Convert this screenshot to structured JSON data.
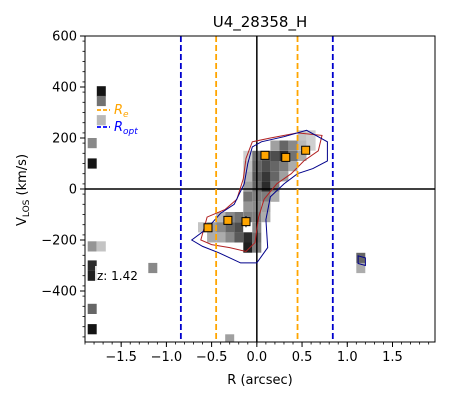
{
  "chart_data": {
    "type": "scatter",
    "title": "U4_28358_H",
    "xlabel": "R (arcsec)",
    "ylabel_main": "V",
    "ylabel_sub": "LOS",
    "ylabel_unit": " (km/s)",
    "xlim": [
      -1.9,
      1.97
    ],
    "ylim": [
      -600,
      600
    ],
    "xticks": [
      {
        "value": -1.5,
        "label": "−1.5"
      },
      {
        "value": -1.0,
        "label": "−1.0"
      },
      {
        "value": -0.5,
        "label": "−0.5"
      },
      {
        "value": 0.0,
        "label": "0.0"
      },
      {
        "value": 0.5,
        "label": "0.5"
      },
      {
        "value": 1.0,
        "label": "1.0"
      },
      {
        "value": 1.5,
        "label": "1.5"
      }
    ],
    "yticks": [
      {
        "value": -400,
        "label": "−400"
      },
      {
        "value": -200,
        "label": "−200"
      },
      {
        "value": 0,
        "label": "0"
      },
      {
        "value": 200,
        "label": "200"
      },
      {
        "value": 400,
        "label": "400"
      },
      {
        "value": 600,
        "label": "600"
      }
    ],
    "grid": false,
    "legend_placement": "upper-left",
    "legend": [
      {
        "label": "R",
        "sub": "e",
        "color": "#FFA500"
      },
      {
        "label": "R",
        "sub": "opt",
        "color": "#0000FF"
      }
    ],
    "annotation": "z: 1.42",
    "re_lines": [
      -0.45,
      0.45
    ],
    "ropt_lines": [
      -0.84,
      0.84
    ],
    "colors": {
      "re": "#FFA500",
      "ropt": "#0000CD",
      "contour_red": "#B22222",
      "contour_blue": "#00008B",
      "points": "#FFA500"
    },
    "points": [
      {
        "x": -0.54,
        "y": -152,
        "err": 15
      },
      {
        "x": -0.32,
        "y": -123,
        "err": 15
      },
      {
        "x": -0.12,
        "y": -128,
        "err": 22
      },
      {
        "x": 0.09,
        "y": 132,
        "err": 15
      },
      {
        "x": 0.32,
        "y": 124,
        "err": 15
      },
      {
        "x": 0.54,
        "y": 152,
        "err": 15
      }
    ],
    "pixels": [
      {
        "x": -1.72,
        "y": 383,
        "v": 0.95
      },
      {
        "x": -1.72,
        "y": 345,
        "v": 0.55
      },
      {
        "x": -1.72,
        "y": 270,
        "v": 0.25
      },
      {
        "x": -1.82,
        "y": 180,
        "v": 0.45
      },
      {
        "x": -1.82,
        "y": 100,
        "v": 0.95
      },
      {
        "x": -1.82,
        "y": -225,
        "v": 0.4
      },
      {
        "x": -1.72,
        "y": -225,
        "v": 0.2
      },
      {
        "x": -1.82,
        "y": -300,
        "v": 0.85
      },
      {
        "x": -1.82,
        "y": -340,
        "v": 0.9
      },
      {
        "x": -1.82,
        "y": -470,
        "v": 0.6
      },
      {
        "x": -1.82,
        "y": -550,
        "v": 0.95
      },
      {
        "x": -1.15,
        "y": -310,
        "v": 0.45
      },
      {
        "x": 1.15,
        "y": -270,
        "v": 0.6
      },
      {
        "x": 1.15,
        "y": -310,
        "v": 0.3
      },
      {
        "x": -0.3,
        "y": -590,
        "v": 0.35
      },
      {
        "x": -0.6,
        "y": -150,
        "v": 0.2
      },
      {
        "x": -0.5,
        "y": -150,
        "v": 0.35
      },
      {
        "x": -0.5,
        "y": -190,
        "v": 0.3
      },
      {
        "x": -0.4,
        "y": -110,
        "v": 0.25
      },
      {
        "x": -0.4,
        "y": -150,
        "v": 0.45
      },
      {
        "x": -0.4,
        "y": -190,
        "v": 0.3
      },
      {
        "x": -0.3,
        "y": -110,
        "v": 0.45
      },
      {
        "x": -0.3,
        "y": -150,
        "v": 0.6
      },
      {
        "x": -0.3,
        "y": -190,
        "v": 0.45
      },
      {
        "x": -0.2,
        "y": -110,
        "v": 0.55
      },
      {
        "x": -0.2,
        "y": -150,
        "v": 0.7
      },
      {
        "x": -0.2,
        "y": -190,
        "v": 0.65
      },
      {
        "x": -0.1,
        "y": -190,
        "v": 0.85
      },
      {
        "x": -0.1,
        "y": -230,
        "v": 0.9
      },
      {
        "x": -0.1,
        "y": -110,
        "v": 0.5
      },
      {
        "x": -0.1,
        "y": -70,
        "v": 0.4
      },
      {
        "x": -0.1,
        "y": -30,
        "v": 0.55
      },
      {
        "x": -0.1,
        "y": 10,
        "v": 0.35
      },
      {
        "x": -0.1,
        "y": 50,
        "v": 0.25
      },
      {
        "x": -0.1,
        "y": 90,
        "v": 0.2
      },
      {
        "x": -0.1,
        "y": 130,
        "v": 0.15
      },
      {
        "x": 0.0,
        "y": -230,
        "v": 0.5
      },
      {
        "x": 0.0,
        "y": -190,
        "v": 0.55
      },
      {
        "x": 0.0,
        "y": -150,
        "v": 0.45
      },
      {
        "x": 0.0,
        "y": -110,
        "v": 0.5
      },
      {
        "x": 0.0,
        "y": -70,
        "v": 0.45
      },
      {
        "x": 0.0,
        "y": -30,
        "v": 0.5
      },
      {
        "x": 0.0,
        "y": 10,
        "v": 0.6
      },
      {
        "x": 0.0,
        "y": 50,
        "v": 0.65
      },
      {
        "x": 0.0,
        "y": 90,
        "v": 0.6
      },
      {
        "x": 0.0,
        "y": 130,
        "v": 0.55
      },
      {
        "x": 0.1,
        "y": -110,
        "v": 0.3
      },
      {
        "x": 0.1,
        "y": -70,
        "v": 0.35
      },
      {
        "x": 0.1,
        "y": -30,
        "v": 0.5
      },
      {
        "x": 0.1,
        "y": 10,
        "v": 0.85
      },
      {
        "x": 0.1,
        "y": 50,
        "v": 0.8
      },
      {
        "x": 0.1,
        "y": 90,
        "v": 0.7
      },
      {
        "x": 0.1,
        "y": 130,
        "v": 0.65
      },
      {
        "x": 0.2,
        "y": -30,
        "v": 0.3
      },
      {
        "x": 0.2,
        "y": 10,
        "v": 0.5
      },
      {
        "x": 0.2,
        "y": 50,
        "v": 0.6
      },
      {
        "x": 0.2,
        "y": 90,
        "v": 0.6
      },
      {
        "x": 0.2,
        "y": 130,
        "v": 0.7
      },
      {
        "x": 0.2,
        "y": 170,
        "v": 0.35
      },
      {
        "x": 0.3,
        "y": 50,
        "v": 0.35
      },
      {
        "x": 0.3,
        "y": 90,
        "v": 0.5
      },
      {
        "x": 0.3,
        "y": 130,
        "v": 0.85
      },
      {
        "x": 0.3,
        "y": 170,
        "v": 0.6
      },
      {
        "x": 0.4,
        "y": 90,
        "v": 0.3
      },
      {
        "x": 0.4,
        "y": 130,
        "v": 0.55
      },
      {
        "x": 0.4,
        "y": 170,
        "v": 0.45
      },
      {
        "x": 0.5,
        "y": 130,
        "v": 0.3
      },
      {
        "x": 0.5,
        "y": 170,
        "v": 0.25
      },
      {
        "x": 0.5,
        "y": 210,
        "v": 0.2
      },
      {
        "x": 0.6,
        "y": 170,
        "v": 0.15
      },
      {
        "x": 0.6,
        "y": 210,
        "v": 0.15
      }
    ],
    "contour_red": [
      [
        -0.62,
        -200
      ],
      [
        -0.55,
        -110
      ],
      [
        -0.35,
        -80
      ],
      [
        -0.22,
        -40
      ],
      [
        -0.15,
        40
      ],
      [
        -0.12,
        120
      ],
      [
        -0.05,
        185
      ],
      [
        0.15,
        200
      ],
      [
        0.45,
        220
      ],
      [
        0.72,
        210
      ],
      [
        0.68,
        150
      ],
      [
        0.52,
        110
      ],
      [
        0.38,
        60
      ],
      [
        0.22,
        20
      ],
      [
        0.08,
        -40
      ],
      [
        0.02,
        -110
      ],
      [
        -0.02,
        -210
      ],
      [
        -0.12,
        -245
      ],
      [
        -0.3,
        -230
      ],
      [
        -0.5,
        -218
      ]
    ],
    "contour_blue": [
      [
        -0.72,
        -200
      ],
      [
        -0.55,
        -155
      ],
      [
        -0.4,
        -95
      ],
      [
        -0.25,
        -60
      ],
      [
        -0.14,
        20
      ],
      [
        -0.1,
        100
      ],
      [
        -0.05,
        165
      ],
      [
        0.05,
        185
      ],
      [
        0.3,
        205
      ],
      [
        0.55,
        230
      ],
      [
        0.78,
        185
      ],
      [
        0.78,
        110
      ],
      [
        0.62,
        80
      ],
      [
        0.45,
        60
      ],
      [
        0.3,
        20
      ],
      [
        0.15,
        -30
      ],
      [
        0.1,
        -120
      ],
      [
        0.12,
        -230
      ],
      [
        0.0,
        -290
      ],
      [
        -0.18,
        -290
      ],
      [
        -0.42,
        -250
      ],
      [
        -0.6,
        -225
      ]
    ],
    "contour_blue_small": [
      [
        1.12,
        -262
      ],
      [
        1.2,
        -270
      ],
      [
        1.2,
        -300
      ],
      [
        1.12,
        -292
      ]
    ]
  }
}
